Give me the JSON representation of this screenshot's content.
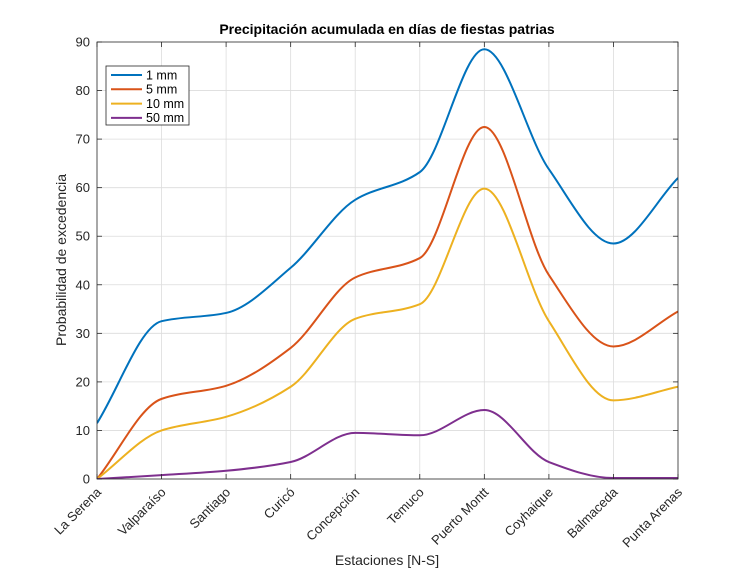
{
  "chart_data": {
    "type": "line",
    "title": "Precipitación acumulada en días de fiestas patrias",
    "xlabel": "Estaciones [N-S]",
    "ylabel": "Probabilidad de excedencia",
    "categories": [
      "La Serena",
      "Valparaíso",
      "Santiago",
      "Curicó",
      "Concepción",
      "Temuco",
      "Puerto Montt",
      "Coyhaique",
      "Balmaceda",
      "Punta Arenas"
    ],
    "ylim": [
      0,
      90
    ],
    "yticks": [
      "0",
      "10",
      "20",
      "30",
      "40",
      "50",
      "60",
      "70",
      "80",
      "90"
    ],
    "grid": true,
    "legend_position": "top-left",
    "series": [
      {
        "name": "1 mm",
        "color": "#0072bd",
        "values": [
          11.5,
          32.5,
          34.2,
          43.5,
          57.5,
          63.2,
          88.5,
          63.8,
          48.5,
          62
        ]
      },
      {
        "name": "5 mm",
        "color": "#d95319",
        "values": [
          0,
          16.5,
          19.2,
          27,
          41.5,
          45.5,
          72.5,
          42,
          27.3,
          34.5
        ]
      },
      {
        "name": "10 mm",
        "color": "#edb120",
        "values": [
          0,
          10,
          12.8,
          19,
          33,
          36,
          59.8,
          32.5,
          16.2,
          19
        ]
      },
      {
        "name": "50 mm",
        "color": "#7e2f8e",
        "values": [
          0,
          0.8,
          1.7,
          3.5,
          9.5,
          9,
          14.2,
          3.5,
          0.2,
          0.2
        ]
      }
    ]
  }
}
